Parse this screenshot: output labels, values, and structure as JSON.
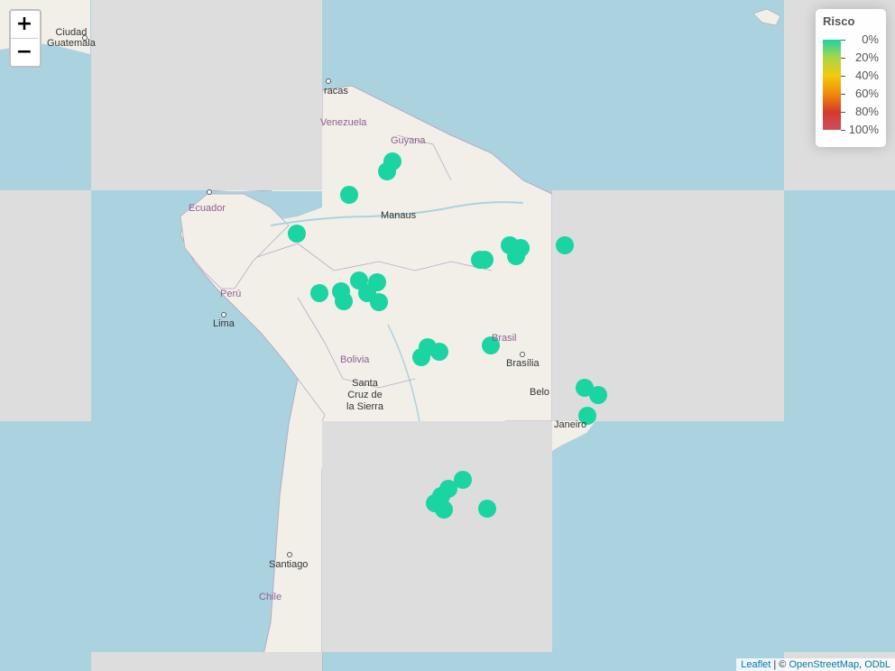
{
  "legend": {
    "title": "Risco",
    "labels": [
      "0%",
      "20%",
      "40%",
      "60%",
      "80%",
      "100%"
    ]
  },
  "zoom": {
    "in": "+",
    "out": "−"
  },
  "attribution": {
    "leaflet": "Leaflet",
    "sep": " | © ",
    "osm": "OpenStreetMap",
    "comma": ", ",
    "odbl": "ODbL"
  },
  "labels": {
    "ciudad_guatemala": "Ciudad\nGuatemala",
    "caracas": "racas",
    "venezuela": "Venezuela",
    "guyana": "Guyana",
    "ecuador": "Ecuador",
    "manaus": "Manaus",
    "peru": "Perú",
    "lima": "Lima",
    "bolivia": "Bolivia",
    "santa_cruz": "Santa\nCruz de\nla Sierra",
    "brasil": "Brasil",
    "brasilia": "Brasília",
    "belo": "Belo",
    "janeiro": "Janeiro",
    "santiago": "Santiago",
    "chile": "Chile"
  },
  "colors": {
    "ocean": "#aad3df",
    "land": "#f2efe9",
    "missing_tile": "#dddddd",
    "marker": "#1ad4a2"
  },
  "markers_count": 30
}
